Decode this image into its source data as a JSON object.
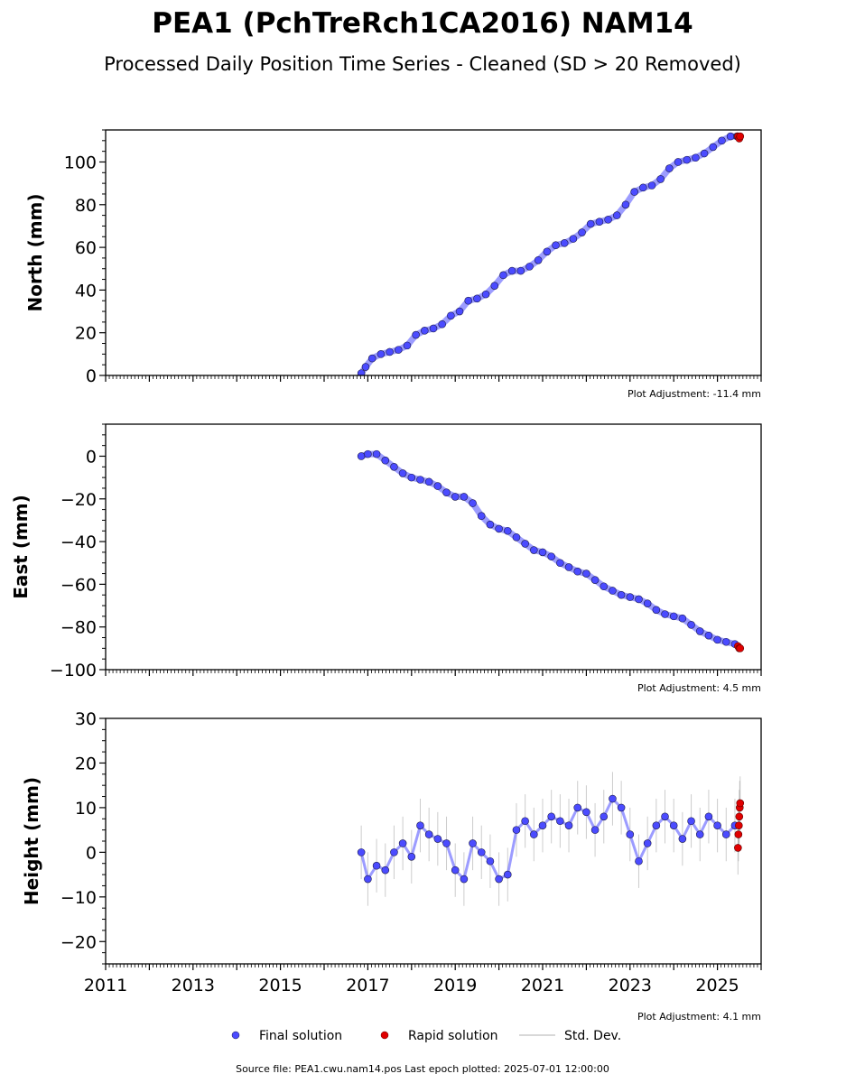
{
  "figure": {
    "title": "PEA1 (PchTreRch1CA2016) NAM14",
    "subtitle": "Processed Daily Position Time Series - Cleaned (SD > 20 Removed)",
    "footer": "Source file: PEA1.cwu.nam14.pos  Last epoch plotted: 2025-07-01 12:00:00"
  },
  "legend": {
    "final": "Final solution",
    "rapid": "Rapid solution",
    "std": "Std. Dev."
  },
  "colors": {
    "final": "#4b4bff",
    "final_edge": "#1a1a4a",
    "rapid": "#e00000",
    "std": "#999999",
    "axis": "#000000"
  },
  "chart_data": [
    {
      "type": "scatter",
      "ylabel": "North (mm)",
      "adjustment": "Plot Adjustment: -11.4 mm",
      "xlim": [
        2011,
        2026
      ],
      "ylim": [
        0,
        115
      ],
      "yticks": [
        0,
        20,
        40,
        60,
        80,
        100
      ],
      "ytick_labels": [
        "0",
        "20",
        "40",
        "60",
        "80",
        "100"
      ],
      "series": [
        {
          "name": "Final solution",
          "x": [
            2016.85,
            2016.95,
            2017.1,
            2017.3,
            2017.5,
            2017.7,
            2017.9,
            2018.1,
            2018.3,
            2018.5,
            2018.7,
            2018.9,
            2019.1,
            2019.3,
            2019.5,
            2019.7,
            2019.9,
            2020.1,
            2020.3,
            2020.5,
            2020.7,
            2020.9,
            2021.1,
            2021.3,
            2021.5,
            2021.7,
            2021.9,
            2022.1,
            2022.3,
            2022.5,
            2022.7,
            2022.9,
            2023.1,
            2023.3,
            2023.5,
            2023.7,
            2023.9,
            2024.1,
            2024.3,
            2024.5,
            2024.7,
            2024.9,
            2025.1,
            2025.3,
            2025.45
          ],
          "y": [
            1,
            4,
            8,
            10,
            11,
            12,
            14,
            19,
            21,
            22,
            24,
            28,
            30,
            35,
            36,
            38,
            42,
            47,
            49,
            49,
            51,
            54,
            58,
            61,
            62,
            64,
            67,
            71,
            72,
            73,
            75,
            80,
            86,
            88,
            89,
            92,
            97,
            100,
            101,
            102,
            104,
            107,
            110,
            112,
            112
          ]
        },
        {
          "name": "Rapid solution",
          "x": [
            2025.47,
            2025.5,
            2025.52
          ],
          "y": [
            112,
            111,
            112
          ]
        }
      ]
    },
    {
      "type": "scatter",
      "ylabel": "East (mm)",
      "adjustment": "Plot Adjustment: 4.5 mm",
      "xlim": [
        2011,
        2026
      ],
      "ylim": [
        -100,
        15
      ],
      "yticks": [
        -100,
        -80,
        -60,
        -40,
        -20,
        0
      ],
      "ytick_labels": [
        "−100",
        "−80",
        "−60",
        "−40",
        "−20",
        "0"
      ],
      "series": [
        {
          "name": "Final solution",
          "x": [
            2016.85,
            2017.0,
            2017.2,
            2017.4,
            2017.6,
            2017.8,
            2018.0,
            2018.2,
            2018.4,
            2018.6,
            2018.8,
            2019.0,
            2019.2,
            2019.4,
            2019.6,
            2019.8,
            2020.0,
            2020.2,
            2020.4,
            2020.6,
            2020.8,
            2021.0,
            2021.2,
            2021.4,
            2021.6,
            2021.8,
            2022.0,
            2022.2,
            2022.4,
            2022.6,
            2022.8,
            2023.0,
            2023.2,
            2023.4,
            2023.6,
            2023.8,
            2024.0,
            2024.2,
            2024.4,
            2024.6,
            2024.8,
            2025.0,
            2025.2,
            2025.4
          ],
          "y": [
            0,
            1,
            1,
            -2,
            -5,
            -8,
            -10,
            -11,
            -12,
            -14,
            -17,
            -19,
            -19,
            -22,
            -28,
            -32,
            -34,
            -35,
            -38,
            -41,
            -44,
            -45,
            -47,
            -50,
            -52,
            -54,
            -55,
            -58,
            -61,
            -63,
            -65,
            -66,
            -67,
            -69,
            -72,
            -74,
            -75,
            -76,
            -79,
            -82,
            -84,
            -86,
            -87,
            -88
          ]
        },
        {
          "name": "Rapid solution",
          "x": [
            2025.47,
            2025.5,
            2025.52
          ],
          "y": [
            -89,
            -90,
            -90
          ]
        }
      ]
    },
    {
      "type": "scatter",
      "ylabel": "Height (mm)",
      "adjustment": "Plot Adjustment: 4.1 mm",
      "xlim": [
        2011,
        2026
      ],
      "ylim": [
        -25,
        30
      ],
      "yticks": [
        -20,
        -10,
        0,
        10,
        20,
        30
      ],
      "ytick_labels": [
        "−20",
        "−10",
        "0",
        "10",
        "20",
        "30"
      ],
      "xticks": [
        2011,
        2013,
        2015,
        2017,
        2019,
        2021,
        2023,
        2025
      ],
      "xtick_labels": [
        "2011",
        "2013",
        "2015",
        "2017",
        "2019",
        "2021",
        "2023",
        "2025"
      ],
      "series": [
        {
          "name": "Final solution",
          "x": [
            2016.85,
            2017.0,
            2017.2,
            2017.4,
            2017.6,
            2017.8,
            2018.0,
            2018.2,
            2018.4,
            2018.6,
            2018.8,
            2019.0,
            2019.2,
            2019.4,
            2019.6,
            2019.8,
            2020.0,
            2020.2,
            2020.4,
            2020.6,
            2020.8,
            2021.0,
            2021.2,
            2021.4,
            2021.6,
            2021.8,
            2022.0,
            2022.2,
            2022.4,
            2022.6,
            2022.8,
            2023.0,
            2023.2,
            2023.4,
            2023.6,
            2023.8,
            2024.0,
            2024.2,
            2024.4,
            2024.6,
            2024.8,
            2025.0,
            2025.2,
            2025.4
          ],
          "y": [
            0,
            -6,
            -3,
            -4,
            0,
            2,
            -1,
            6,
            4,
            3,
            2,
            -4,
            -6,
            2,
            0,
            -2,
            -6,
            -5,
            5,
            7,
            4,
            6,
            8,
            7,
            6,
            10,
            9,
            5,
            8,
            12,
            10,
            4,
            -2,
            2,
            6,
            8,
            6,
            3,
            7,
            4,
            8,
            6,
            4,
            6
          ]
        },
        {
          "name": "Rapid solution",
          "x": [
            2025.47,
            2025.48,
            2025.49,
            2025.5,
            2025.51,
            2025.52
          ],
          "y": [
            1,
            4,
            6,
            8,
            10,
            11
          ]
        }
      ]
    }
  ]
}
